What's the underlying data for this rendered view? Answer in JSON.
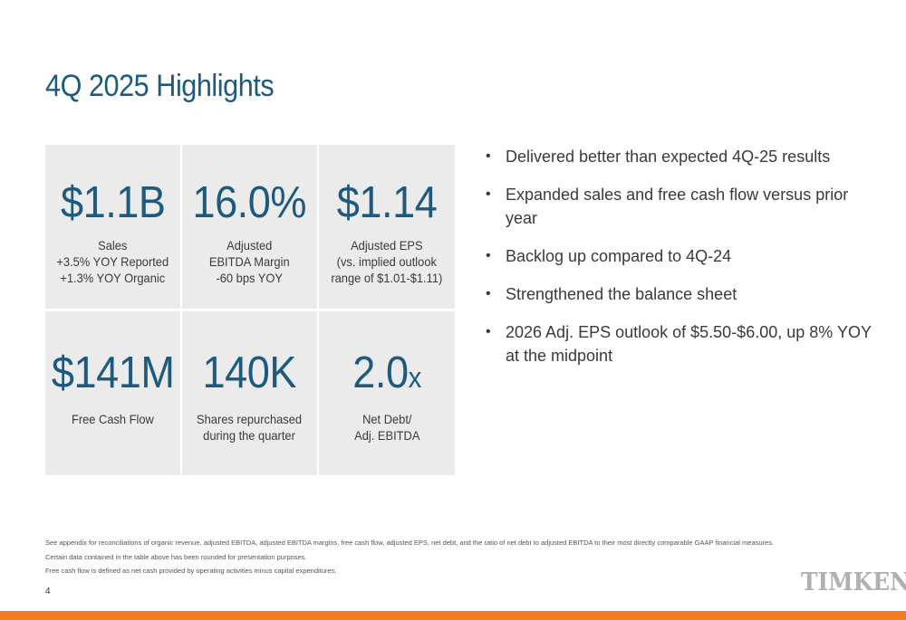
{
  "slide": {
    "title": "4Q 2025 Highlights",
    "page_number": "4"
  },
  "tiles": [
    {
      "value": "$1.1B",
      "unit": "",
      "lines": [
        "Sales",
        "+3.5% YOY Reported",
        "+1.3% YOY Organic"
      ]
    },
    {
      "value": "16.0%",
      "unit": "",
      "lines": [
        "Adjusted",
        "EBITDA Margin",
        "-60 bps YOY"
      ]
    },
    {
      "value": "$1.14",
      "unit": "",
      "lines": [
        "Adjusted EPS",
        "(vs. implied outlook",
        "range of $1.01-$1.11)"
      ]
    },
    {
      "value": "$141M",
      "unit": "",
      "lines": [
        "Free Cash Flow"
      ]
    },
    {
      "value": "140K",
      "unit": "",
      "lines": [
        "Shares repurchased",
        "during the quarter"
      ]
    },
    {
      "value": "2.0",
      "unit": "x",
      "lines": [
        "Net Debt/",
        "Adj. EBITDA"
      ]
    }
  ],
  "bullets": [
    "Delivered better than expected 4Q-25 results",
    "Expanded sales and free cash flow versus prior year",
    "Backlog up compared to 4Q-24",
    "Strengthened the balance sheet",
    "2026 Adj. EPS outlook of $5.50-$6.00, up 8% YOY at the midpoint"
  ],
  "footnotes": [
    "See appendix for reconciliations of organic revenue, adjusted EBITDA, adjusted EBITDA margins, free cash flow, adjusted EPS, net debt, and the ratio of net debt to adjusted EBITDA to their most directly comparable GAAP financial measures.",
    "Certain data contained in the table above has been rounded for presentation purposes.",
    "Free cash flow is defined as net cash provided by operating activities minus capital expenditures."
  ],
  "brand": {
    "logo_text": "TIMKEN",
    "title_color": "#1d5a7e",
    "tile_bg": "#ebebeb",
    "accent_orange": "#f47c20"
  }
}
